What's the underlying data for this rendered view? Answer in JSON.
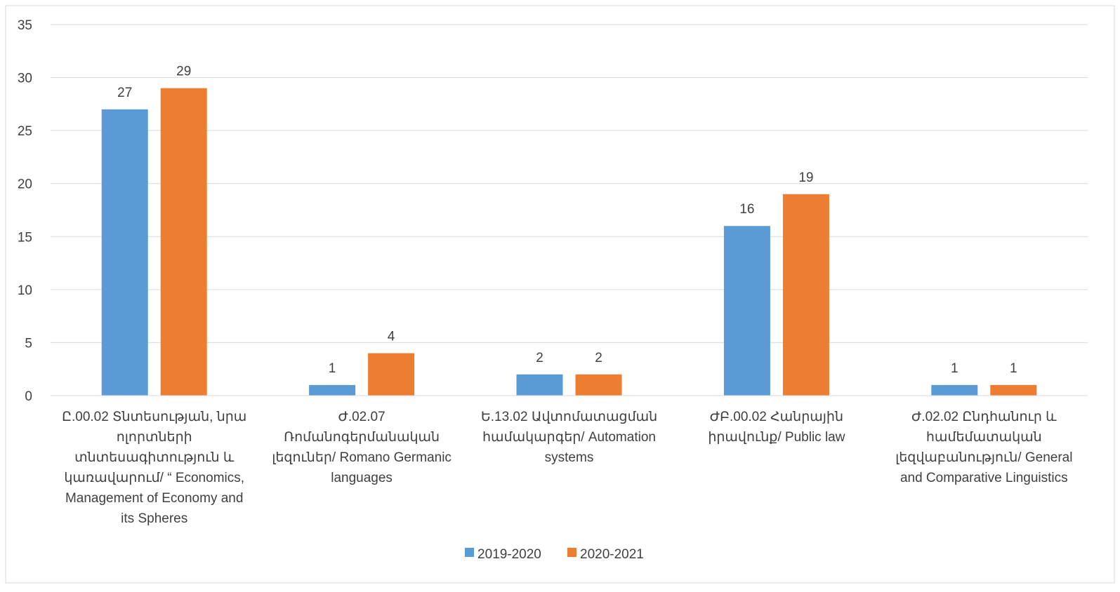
{
  "chart_data": {
    "type": "bar",
    "title": "",
    "xlabel": "",
    "ylabel": "",
    "ylim": [
      0,
      35
    ],
    "yticks": [
      0,
      5,
      10,
      15,
      20,
      25,
      30,
      35
    ],
    "grid": true,
    "legend_position": "bottom",
    "categories": [
      [
        "Ը.00.02 Տնտեսության, նրա",
        "ոլորտների",
        "տնտեսագիտություն և",
        "կառավարում/ “ Economics,",
        "Management of Economy and",
        "its Spheres"
      ],
      [
        "Ժ.02.07",
        "Ռոմանոգերմանական",
        "լեզուներ/ Romano Germanic",
        "languages"
      ],
      [
        "Ե.13.02 Ավտոմատացման",
        "համակարգեր/ Automation",
        "systems"
      ],
      [
        "ԺԲ.00.02 Հանրային",
        "իրավունք/ Public law"
      ],
      [
        "Ժ.02.02 Ընդհանուր և",
        "համեմատական",
        "լեզվաբանություն/ General",
        "and Comparative Linguistics"
      ]
    ],
    "series": [
      {
        "name": "2019-2020",
        "color": "#5B9BD5",
        "values": [
          27,
          1,
          2,
          16,
          1
        ]
      },
      {
        "name": "2020-2021",
        "color": "#ED7D31",
        "values": [
          29,
          4,
          2,
          19,
          1
        ]
      }
    ]
  }
}
